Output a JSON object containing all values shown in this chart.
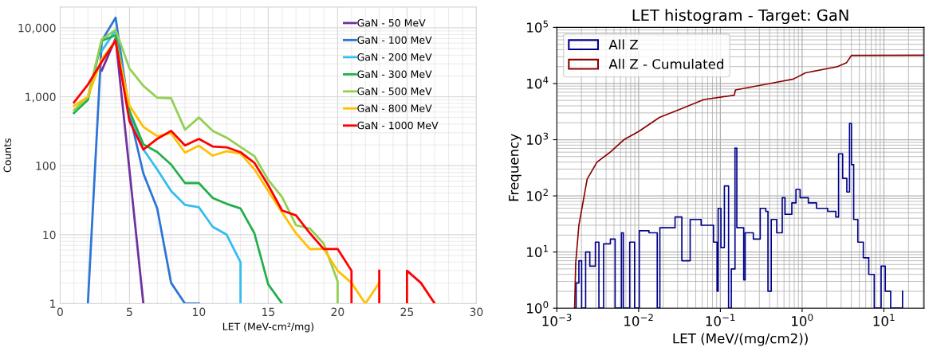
{
  "chart_data": [
    {
      "type": "line",
      "xlabel": "LET (MeV-cm²/mg)",
      "ylabel": "Counts",
      "log": "y",
      "grid": true,
      "legend": "top right",
      "xlim": [
        0,
        30
      ],
      "xticks": [
        0,
        5,
        10,
        15,
        20,
        25,
        30
      ],
      "ylim": [
        1,
        20000
      ],
      "yticks": [
        1,
        10,
        100,
        {
          "value": 1000,
          "label": "1,000"
        },
        {
          "value": 10000,
          "label": "10,000"
        }
      ],
      "series": [
        {
          "name": "GaN - 50 MeV",
          "color": "#7030a0",
          "x": [
            3,
            4,
            5,
            6
          ],
          "values": [
            2400,
            7000,
            85,
            1
          ]
        },
        {
          "name": "GaN - 100 MeV",
          "color": "#2e75d6",
          "x": [
            2,
            3,
            4,
            5,
            6,
            7,
            8,
            9,
            10
          ],
          "values": [
            1,
            6500,
            14000,
            570,
            77,
            24,
            2,
            1,
            1
          ]
        },
        {
          "name": "GaN - 200 MeV",
          "color": "#33bdf0",
          "x": [
            3,
            4,
            5,
            6,
            7,
            8,
            9,
            10,
            11,
            12,
            13,
            13
          ],
          "values": [
            4600,
            9300,
            600,
            172,
            88,
            43,
            27,
            25,
            13,
            10,
            4,
            1
          ]
        },
        {
          "name": "GaN - 300 MeV",
          "color": "#22b04a",
          "x": [
            1,
            2,
            3,
            4,
            5,
            6,
            7,
            8,
            9,
            10,
            11,
            12,
            13,
            14,
            15,
            16
          ],
          "values": [
            580,
            900,
            6500,
            7800,
            620,
            204,
            158,
            104,
            56,
            56,
            34,
            28,
            24,
            10.5,
            1.9,
            1
          ]
        },
        {
          "name": "GaN - 500 MeV",
          "color": "#92d050",
          "x": [
            1,
            2,
            3,
            4,
            5,
            6,
            7,
            8,
            9,
            10,
            11,
            12,
            13,
            14,
            15,
            16,
            17,
            18,
            19,
            20,
            20
          ],
          "values": [
            640,
            1000,
            6800,
            9300,
            2570,
            1440,
            970,
            950,
            333,
            500,
            320,
            255,
            187,
            138,
            62,
            35,
            13.7,
            12.3,
            7.4,
            2.1,
            1
          ]
        },
        {
          "name": "GaN - 800 MeV",
          "color": "#ffc000",
          "x": [
            1,
            2,
            3,
            4,
            5,
            6,
            7,
            8,
            9,
            10,
            11,
            12,
            13,
            14,
            15,
            16,
            17,
            18,
            19,
            20,
            21,
            22,
            23
          ],
          "values": [
            740,
            1000,
            3500,
            6500,
            740,
            366,
            268,
            295,
            155,
            195,
            140,
            162,
            150,
            89,
            43,
            21,
            10.5,
            6.2,
            6.2,
            3,
            2,
            1,
            2
          ]
        },
        {
          "name": "GaN - 1000 MeV",
          "color": "#ff0000",
          "x": [
            1,
            2,
            3,
            4,
            5,
            6,
            7,
            8,
            9,
            10,
            11,
            12,
            13,
            14,
            15,
            16,
            17,
            18,
            19,
            20,
            21,
            21,
            22,
            23,
            23,
            24,
            25,
            25,
            26,
            27
          ],
          "values": [
            830,
            1500,
            3200,
            6500,
            440,
            172,
            245,
            320,
            197,
            245,
            190,
            185,
            157,
            110,
            52,
            22.4,
            19,
            10.5,
            6.2,
            6.2,
            3,
            1,
            null,
            1,
            3,
            null,
            1,
            3,
            2,
            1
          ]
        }
      ]
    },
    {
      "type": "step",
      "title": "LET histogram - Target: GaN",
      "xlabel": "LET (MeV/(mg/cm2))",
      "ylabel": "Frequency",
      "log": "xy",
      "grid": true,
      "legend": "top left",
      "xlim": [
        0.001,
        31
      ],
      "ylim": [
        1,
        100000
      ],
      "xticks": [
        {
          "value": 0.001,
          "label": "10$^{−3}$"
        },
        {
          "value": 0.01,
          "label": "10$^{−2}$"
        },
        {
          "value": 0.1,
          "label": "10$^{−1}$"
        },
        {
          "value": 1,
          "label": "10$^{0}$"
        },
        {
          "value": 10,
          "label": "10$^{1}$"
        }
      ],
      "yticks": [
        {
          "value": 1,
          "label": "10$^{0}$"
        },
        {
          "value": 10,
          "label": "10$^{1}$"
        },
        {
          "value": 100,
          "label": "10$^{2}$"
        },
        {
          "value": 1000,
          "label": "10$^{3}$"
        },
        {
          "value": 10000,
          "label": "10$^{4}$"
        },
        {
          "value": 100000,
          "label": "10$^{5}$"
        }
      ],
      "series": [
        {
          "name": "All Z",
          "color": "#00008b",
          "x": [
            0.00165,
            0.00172,
            0.00186,
            0.00201,
            0.00225,
            0.00253,
            0.00296,
            0.00327,
            0.00373,
            0.00452,
            0.00516,
            0.00617,
            0.0065,
            0.00778,
            0.00894,
            0.0102,
            0.0134,
            0.0169,
            0.0182,
            0.0279,
            0.0338,
            0.0427,
            0.0582,
            0.0824,
            0.0912,
            0.094,
            0.1016,
            0.112,
            0.126,
            0.136,
            0.151,
            0.159,
            0.193,
            0.201,
            0.253,
            0.307,
            0.359,
            0.382,
            0.419,
            0.489,
            0.571,
            0.617,
            0.748,
            0.84,
            0.944,
            1.19,
            1.5,
            2.05,
            2.58,
            2.79,
            3.13,
            3.52,
            3.8,
            4.01,
            4.27,
            4.8,
            5.6,
            6.53,
            7.62,
            9.25,
            10.4,
            12.1,
            16.9
          ],
          "values": [
            1,
            2.8,
            7,
            1,
            10,
            5.6,
            15,
            1,
            14,
            17,
            1,
            22,
            1,
            15,
            1,
            24,
            22,
            1,
            27,
            42,
            7,
            38,
            30,
            15,
            2,
            60,
            12,
            150,
            1,
            5,
            710,
            27,
            3.2,
            22,
            17,
            60,
            53,
            2,
            38,
            22,
            93,
            47,
            75,
            130,
            93,
            75,
            60,
            53,
            42,
            560,
            205,
            117,
            1950,
            360,
            38,
            15,
            7.9,
            4,
            1,
            5.6,
            2,
            1,
            2
          ]
        },
        {
          "name": "All Z - Cumulated",
          "type": "line",
          "color": "#8b0000",
          "x": [
            0.00165,
            0.0017,
            0.00186,
            0.00235,
            0.0031,
            0.0045,
            0.0066,
            0.01,
            0.018,
            0.034,
            0.063,
            0.148,
            0.153,
            0.4,
            0.78,
            1.1,
            2.7,
            3.5,
            4.0,
            31
          ],
          "values": [
            1,
            6.3,
            30,
            200,
            400,
            600,
            1000,
            1400,
            2500,
            3600,
            5200,
            6200,
            7700,
            10000,
            12000,
            15500,
            20000,
            23600,
            31600,
            32000
          ]
        }
      ]
    }
  ]
}
